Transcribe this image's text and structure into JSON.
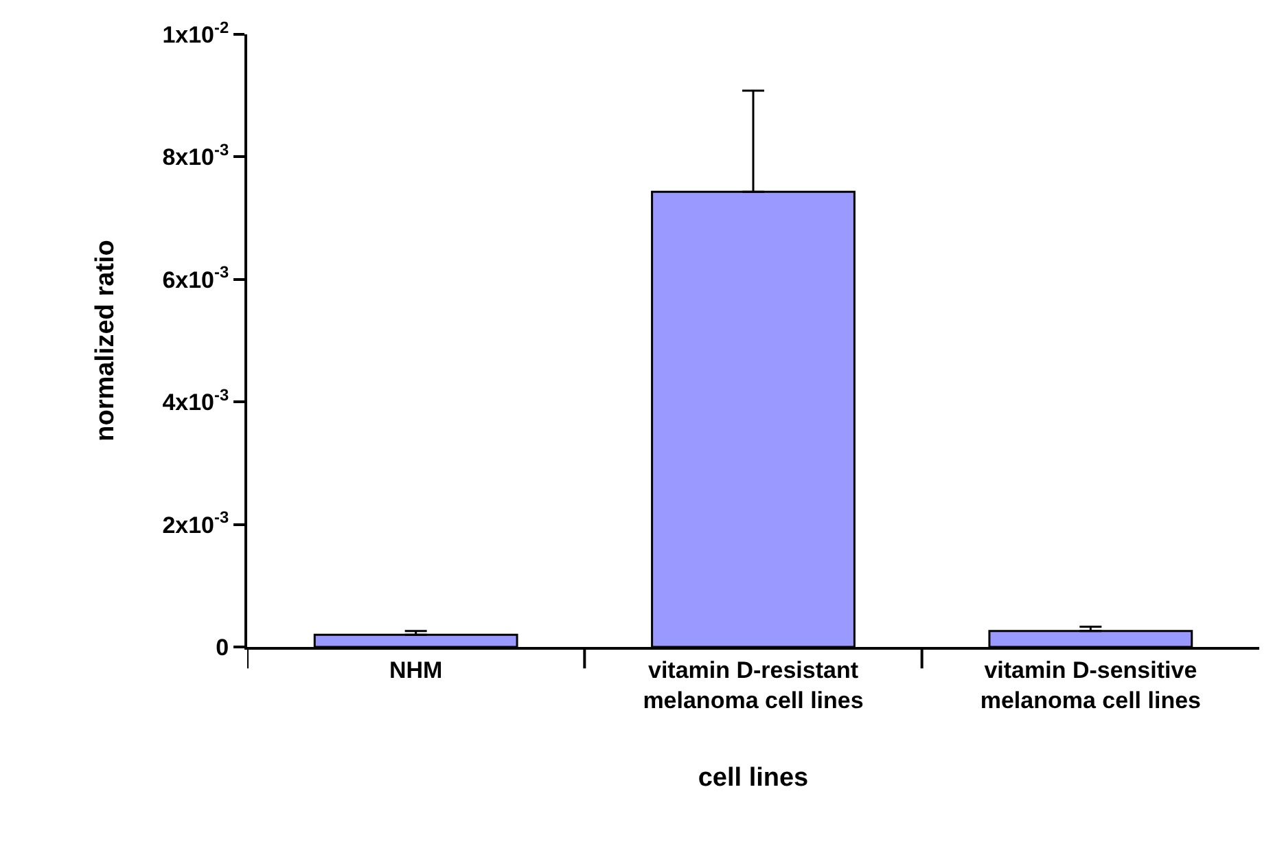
{
  "chart_data": {
    "type": "bar",
    "xlabel": "cell lines",
    "ylabel": "normalized ratio",
    "categories": [
      "NHM",
      "vitamin D-resistant melanoma cell lines",
      "vitamin D-sensitive melanoma cell lines"
    ],
    "values": [
      0.0002,
      0.00743,
      0.00026
    ],
    "errors": [
      6e-05,
      0.00165,
      7e-05
    ],
    "color": "#9999ff",
    "ylim": [
      0,
      0.01
    ],
    "yticks": [
      {
        "value": 0,
        "label": "0"
      },
      {
        "value": 0.002,
        "label": "2x10$^{-3}$"
      },
      {
        "value": 0.004,
        "label": "4x10$^{-3}$"
      },
      {
        "value": 0.006,
        "label": "6x10$^{-3}$"
      },
      {
        "value": 0.008,
        "label": "8x10$^{-3}$"
      },
      {
        "value": 0.01,
        "label": "1x10$^{-2}$"
      }
    ],
    "grid": false
  }
}
